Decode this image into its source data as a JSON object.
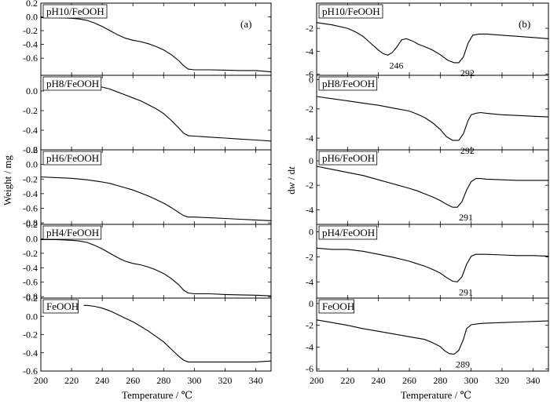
{
  "figure": {
    "x_label": "Temperature / ℃",
    "left_y_label": "Weight / mg",
    "right_y_label_prefix": "d",
    "right_y_label_var1": "w",
    "right_y_label_mid": " / d",
    "right_y_label_var2": "t",
    "panel_a_label": "(a)",
    "panel_b_label": "(b)"
  },
  "chart_data": [
    {
      "type": "line",
      "panel": "a",
      "xlim": [
        200,
        350
      ],
      "x_ticks": [
        200,
        220,
        240,
        260,
        280,
        300,
        320,
        340
      ],
      "subplots": [
        {
          "sample": "pH10/FeOOH",
          "ylim": [
            -0.85,
            0.2
          ],
          "y_ticks": [
            0.2,
            0.0,
            -0.2,
            -0.4,
            -0.6,
            0.8
          ],
          "y_tick_labels": [
            "0.2",
            "0.0",
            "-0.2",
            "-0.4",
            "-0.6",
            "0.8"
          ],
          "x": [
            200,
            210,
            220,
            225,
            230,
            235,
            240,
            245,
            250,
            255,
            260,
            265,
            270,
            275,
            280,
            285,
            290,
            293,
            296,
            300,
            310,
            320,
            330,
            340,
            350
          ],
          "y": [
            -0.01,
            -0.01,
            -0.02,
            -0.03,
            -0.05,
            -0.09,
            -0.14,
            -0.2,
            -0.26,
            -0.31,
            -0.34,
            -0.36,
            -0.39,
            -0.43,
            -0.48,
            -0.55,
            -0.64,
            -0.71,
            -0.76,
            -0.77,
            -0.77,
            -0.775,
            -0.78,
            -0.78,
            -0.8
          ]
        },
        {
          "sample": "pH8/FeOOH",
          "ylim": [
            -0.6,
            0.16
          ],
          "y_ticks": [
            0.0,
            -0.2,
            -0.4,
            -0.6
          ],
          "y_tick_labels": [
            "0.0",
            "-0.2",
            "-0.4",
            "-0.6"
          ],
          "x": [
            228,
            230,
            235,
            240,
            245,
            250,
            255,
            260,
            265,
            270,
            275,
            280,
            285,
            290,
            293,
            296,
            300,
            310,
            320,
            330,
            340,
            350
          ],
          "y": [
            0.06,
            0.06,
            0.05,
            0.04,
            0.02,
            -0.01,
            -0.04,
            -0.07,
            -0.1,
            -0.14,
            -0.18,
            -0.23,
            -0.3,
            -0.38,
            -0.43,
            -0.455,
            -0.46,
            -0.47,
            -0.48,
            -0.49,
            -0.5,
            -0.51
          ]
        },
        {
          "sample": "pH6/FeOOH",
          "ylim": [
            -0.82,
            0.2
          ],
          "y_ticks": [
            0.2,
            0.0,
            -0.2,
            -0.4,
            -0.6,
            -0.8
          ],
          "y_tick_labels": [
            "0.2",
            "0.0",
            "-0.2",
            "-0.4",
            "-0.6",
            "-0.8"
          ],
          "x": [
            200,
            210,
            220,
            230,
            240,
            245,
            250,
            255,
            260,
            265,
            270,
            275,
            280,
            285,
            290,
            293,
            296,
            300,
            310,
            320,
            330,
            340,
            350
          ],
          "y": [
            -0.17,
            -0.18,
            -0.19,
            -0.21,
            -0.24,
            -0.26,
            -0.29,
            -0.32,
            -0.35,
            -0.39,
            -0.43,
            -0.48,
            -0.53,
            -0.59,
            -0.66,
            -0.7,
            -0.72,
            -0.72,
            -0.73,
            -0.74,
            -0.75,
            -0.76,
            -0.77
          ]
        },
        {
          "sample": "pH4/FeOOH",
          "ylim": [
            -0.82,
            0.2
          ],
          "y_ticks": [
            0.2,
            0.0,
            -0.2,
            -0.4,
            -0.6,
            -0.8
          ],
          "y_tick_labels": [
            "0.2",
            "0.0",
            "-0.2",
            "-0.4",
            "-0.6",
            "-0.8"
          ],
          "x": [
            200,
            210,
            220,
            225,
            230,
            235,
            240,
            245,
            250,
            255,
            260,
            265,
            270,
            275,
            280,
            285,
            290,
            293,
            296,
            300,
            310,
            320,
            330,
            340,
            350
          ],
          "y": [
            -0.01,
            -0.01,
            -0.02,
            -0.03,
            -0.05,
            -0.09,
            -0.14,
            -0.2,
            -0.26,
            -0.31,
            -0.34,
            -0.36,
            -0.39,
            -0.43,
            -0.48,
            -0.55,
            -0.64,
            -0.71,
            -0.75,
            -0.76,
            -0.76,
            -0.77,
            -0.775,
            -0.78,
            -0.79
          ]
        },
        {
          "sample": "FeOOH",
          "ylim": [
            -0.6,
            0.2
          ],
          "y_ticks": [
            0.2,
            0.0,
            -0.2,
            -0.4,
            -0.6
          ],
          "y_tick_labels": [
            "0.2",
            "0.0",
            "-0.2",
            "-0.4",
            "-0.6"
          ],
          "x": [
            228,
            230,
            235,
            240,
            245,
            250,
            255,
            260,
            265,
            270,
            275,
            280,
            285,
            290,
            293,
            296,
            300,
            310,
            320,
            330,
            340,
            350
          ],
          "y": [
            0.12,
            0.12,
            0.11,
            0.09,
            0.06,
            0.02,
            -0.02,
            -0.06,
            -0.11,
            -0.16,
            -0.22,
            -0.28,
            -0.36,
            -0.44,
            -0.48,
            -0.5,
            -0.5,
            -0.5,
            -0.5,
            -0.5,
            -0.5,
            -0.49
          ]
        }
      ]
    },
    {
      "type": "line",
      "panel": "b",
      "xlim": [
        200,
        350
      ],
      "x_ticks": [
        200,
        220,
        240,
        260,
        280,
        300,
        320,
        340
      ],
      "subplots": [
        {
          "sample": "pH10/FeOOH",
          "ylim": [
            -6.1,
            0.2
          ],
          "y_ticks": [
            -2,
            -4,
            -6
          ],
          "y_tick_labels": [
            "-2",
            "-4",
            "-6"
          ],
          "x": [
            200,
            210,
            220,
            225,
            230,
            235,
            240,
            243,
            246,
            249,
            252,
            255,
            258,
            262,
            266,
            270,
            275,
            280,
            285,
            289,
            292,
            295,
            298,
            301,
            305,
            310,
            320,
            330,
            340,
            350
          ],
          "y": [
            -1.5,
            -1.7,
            -2.0,
            -2.3,
            -2.7,
            -3.3,
            -3.9,
            -4.2,
            -4.35,
            -4.1,
            -3.6,
            -3.0,
            -2.9,
            -3.1,
            -3.4,
            -3.6,
            -3.9,
            -4.3,
            -4.8,
            -5.0,
            -5.0,
            -4.5,
            -3.3,
            -2.6,
            -2.5,
            -2.5,
            -2.6,
            -2.7,
            -2.8,
            -2.9
          ]
        },
        {
          "sample": "pH8/FeOOH",
          "ylim": [
            -4.8,
            0.3
          ],
          "y_ticks": [
            0,
            -2,
            -4
          ],
          "y_tick_labels": [
            "0",
            "-2",
            "-4"
          ],
          "x": [
            200,
            210,
            220,
            230,
            240,
            250,
            260,
            265,
            270,
            275,
            280,
            284,
            288,
            292,
            295,
            298,
            300,
            303,
            306,
            310,
            320,
            330,
            340,
            350
          ],
          "y": [
            -1.15,
            -1.3,
            -1.45,
            -1.6,
            -1.75,
            -1.95,
            -2.15,
            -2.35,
            -2.6,
            -2.95,
            -3.4,
            -3.9,
            -4.15,
            -4.15,
            -3.7,
            -2.8,
            -2.4,
            -2.3,
            -2.25,
            -2.3,
            -2.4,
            -2.45,
            -2.5,
            -2.55
          ]
        },
        {
          "sample": "pH6/FeOOH",
          "ylim": [
            -5.2,
            0.9
          ],
          "y_ticks": [
            0,
            -2,
            -4
          ],
          "y_tick_labels": [
            "0",
            "-2",
            "-4"
          ],
          "x": [
            200,
            210,
            220,
            230,
            240,
            250,
            260,
            265,
            270,
            275,
            280,
            284,
            288,
            291,
            294,
            297,
            300,
            303,
            306,
            310,
            320,
            330,
            340,
            350
          ],
          "y": [
            -0.45,
            -0.7,
            -0.95,
            -1.2,
            -1.55,
            -1.9,
            -2.25,
            -2.45,
            -2.7,
            -2.95,
            -3.25,
            -3.55,
            -3.8,
            -3.8,
            -3.35,
            -2.4,
            -1.7,
            -1.45,
            -1.45,
            -1.5,
            -1.55,
            -1.6,
            -1.6,
            -1.6
          ]
        },
        {
          "sample": "pH4/FeOOH",
          "ylim": [
            -5.3,
            0.6
          ],
          "y_ticks": [
            0,
            -2,
            -4
          ],
          "y_tick_labels": [
            "0",
            "-2",
            "-4"
          ],
          "x": [
            200,
            210,
            220,
            230,
            240,
            250,
            260,
            265,
            270,
            275,
            280,
            284,
            288,
            291,
            294,
            297,
            300,
            303,
            306,
            310,
            320,
            330,
            340,
            350
          ],
          "y": [
            -1.3,
            -1.4,
            -1.4,
            -1.55,
            -1.8,
            -2.05,
            -2.35,
            -2.55,
            -2.75,
            -3.0,
            -3.3,
            -3.65,
            -3.95,
            -4.0,
            -3.6,
            -2.6,
            -1.95,
            -1.8,
            -1.8,
            -1.8,
            -1.85,
            -1.9,
            -1.9,
            -1.95
          ]
        },
        {
          "sample": "FeOOH",
          "ylim": [
            -6.2,
            0.5
          ],
          "y_ticks": [
            0,
            -2,
            -4,
            -6
          ],
          "y_tick_labels": [
            "0",
            "-2",
            "-4",
            "-6"
          ],
          "x": [
            200,
            210,
            220,
            230,
            240,
            250,
            260,
            270,
            275,
            280,
            283,
            286,
            289,
            292,
            295,
            297,
            300,
            305,
            310,
            320,
            330,
            340,
            350
          ],
          "y": [
            -1.5,
            -1.75,
            -2.0,
            -2.3,
            -2.55,
            -2.8,
            -3.05,
            -3.3,
            -3.6,
            -3.95,
            -4.35,
            -4.6,
            -4.65,
            -4.3,
            -3.3,
            -2.3,
            -1.95,
            -1.85,
            -1.8,
            -1.75,
            -1.7,
            -1.65,
            -1.6
          ]
        }
      ]
    }
  ],
  "annotations": [
    {
      "panel": "b",
      "row": 0,
      "text": "246",
      "x": 246,
      "y": -4.35
    },
    {
      "panel": "b",
      "row": 0,
      "text": "292",
      "x": 292,
      "y": -5.0
    },
    {
      "panel": "b",
      "row": 1,
      "text": "292",
      "x": 292,
      "y": -4.15
    },
    {
      "panel": "b",
      "row": 2,
      "text": "291",
      "x": 291,
      "y": -3.8
    },
    {
      "panel": "b",
      "row": 3,
      "text": "291",
      "x": 291,
      "y": -4.0
    },
    {
      "panel": "b",
      "row": 4,
      "text": "289",
      "x": 289,
      "y": -4.65
    }
  ]
}
